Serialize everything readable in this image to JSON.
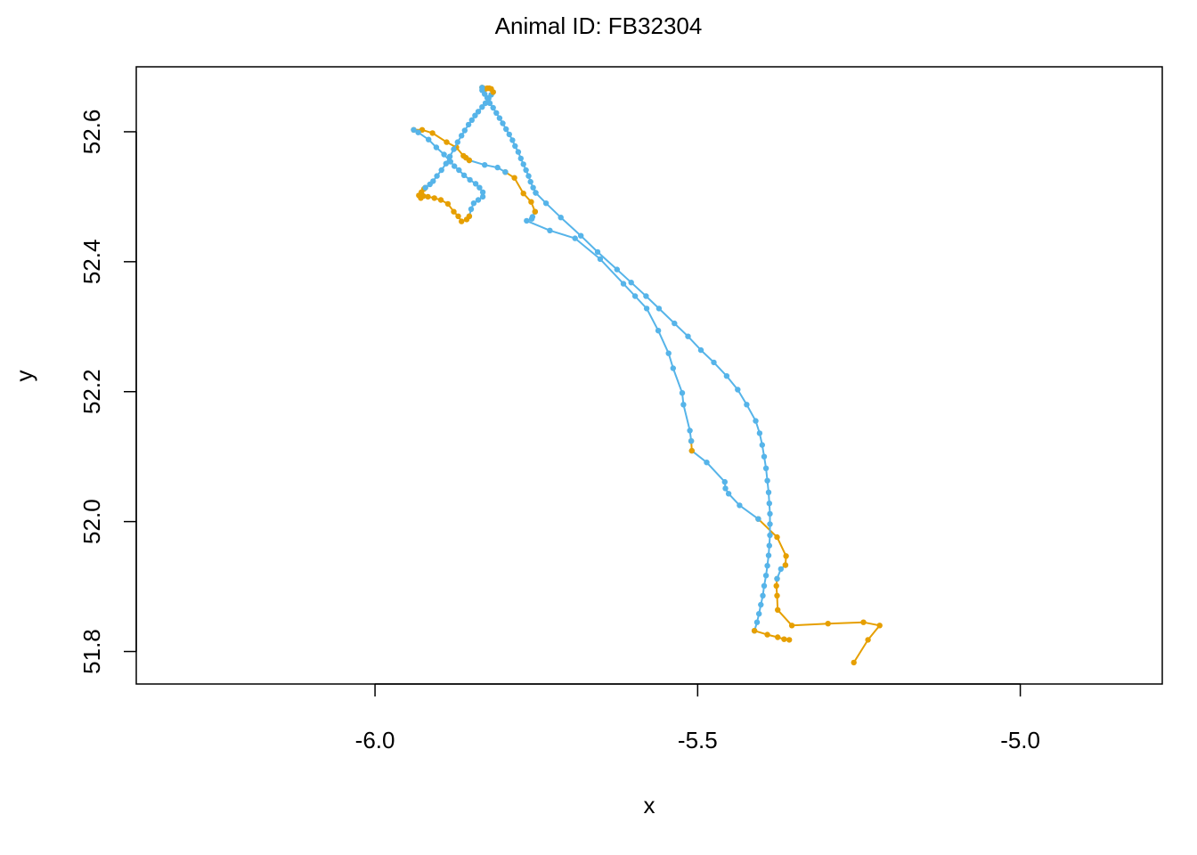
{
  "chart_data": {
    "type": "line",
    "title": "Animal ID: FB32304",
    "xlabel": "x",
    "ylabel": "y",
    "xlim": [
      -6.37,
      -4.78
    ],
    "ylim": [
      51.75,
      52.7
    ],
    "xticks": [
      -6.0,
      -5.5,
      -5.0
    ],
    "xtick_labels": [
      "-6.0",
      "-5.5",
      "-5.0"
    ],
    "yticks": [
      51.8,
      52.0,
      52.2,
      52.4,
      52.6
    ],
    "ytick_labels": [
      "51.8",
      "52.0",
      "52.2",
      "52.4",
      "52.6"
    ],
    "grid": false,
    "colors": {
      "state_a": "#56B4E9",
      "state_b": "#E69F00"
    },
    "segments": [
      {
        "state": "b",
        "points": [
          [
            -5.258,
            51.783
          ],
          [
            -5.236,
            51.818
          ],
          [
            -5.218,
            51.84
          ],
          [
            -5.243,
            51.845
          ],
          [
            -5.298,
            51.843
          ],
          [
            -5.354,
            51.84
          ],
          [
            -5.376,
            51.864
          ],
          [
            -5.377,
            51.886
          ],
          [
            -5.378,
            51.901
          ],
          [
            -5.377,
            51.912
          ]
        ]
      },
      {
        "state": "a",
        "points": [
          [
            -5.377,
            51.912
          ],
          [
            -5.371,
            51.927
          ],
          [
            -5.364,
            51.933
          ]
        ]
      },
      {
        "state": "b",
        "points": [
          [
            -5.364,
            51.933
          ],
          [
            -5.363,
            51.947
          ],
          [
            -5.377,
            51.976
          ],
          [
            -5.406,
            52.004
          ]
        ]
      },
      {
        "state": "a",
        "points": [
          [
            -5.406,
            52.004
          ],
          [
            -5.435,
            52.025
          ],
          [
            -5.452,
            52.043
          ],
          [
            -5.457,
            52.051
          ],
          [
            -5.458,
            52.061
          ],
          [
            -5.486,
            52.091
          ],
          [
            -5.509,
            52.109
          ]
        ]
      },
      {
        "state": "b",
        "points": [
          [
            -5.509,
            52.109
          ],
          [
            -5.51,
            52.124
          ]
        ]
      },
      {
        "state": "a",
        "points": [
          [
            -5.51,
            52.124
          ],
          [
            -5.512,
            52.14
          ],
          [
            -5.522,
            52.18
          ],
          [
            -5.524,
            52.198
          ],
          [
            -5.538,
            52.236
          ],
          [
            -5.545,
            52.259
          ],
          [
            -5.561,
            52.294
          ],
          [
            -5.579,
            52.328
          ],
          [
            -5.597,
            52.347
          ],
          [
            -5.615,
            52.366
          ],
          [
            -5.651,
            52.404
          ],
          [
            -5.69,
            52.436
          ],
          [
            -5.729,
            52.448
          ],
          [
            -5.765,
            52.463
          ],
          [
            -5.757,
            52.466
          ],
          [
            -5.756,
            52.469
          ],
          [
            -5.752,
            52.477
          ]
        ]
      },
      {
        "state": "b",
        "points": [
          [
            -5.752,
            52.477
          ],
          [
            -5.758,
            52.492
          ],
          [
            -5.77,
            52.505
          ],
          [
            -5.784,
            52.529
          ],
          [
            -5.798,
            52.538
          ]
        ]
      },
      {
        "state": "a",
        "points": [
          [
            -5.798,
            52.538
          ],
          [
            -5.81,
            52.545
          ],
          [
            -5.83,
            52.549
          ],
          [
            -5.854,
            52.556
          ]
        ]
      },
      {
        "state": "b",
        "points": [
          [
            -5.854,
            52.556
          ],
          [
            -5.859,
            52.56
          ],
          [
            -5.863,
            52.563
          ],
          [
            -5.874,
            52.576
          ],
          [
            -5.889,
            52.584
          ],
          [
            -5.911,
            52.598
          ],
          [
            -5.927,
            52.603
          ],
          [
            -5.94,
            52.603
          ]
        ]
      },
      {
        "state": "a",
        "points": [
          [
            -5.94,
            52.603
          ],
          [
            -5.933,
            52.599
          ],
          [
            -5.917,
            52.588
          ],
          [
            -5.905,
            52.576
          ],
          [
            -5.893,
            52.565
          ],
          [
            -5.883,
            52.554
          ],
          [
            -5.877,
            52.547
          ],
          [
            -5.87,
            52.541
          ],
          [
            -5.862,
            52.533
          ],
          [
            -5.853,
            52.526
          ],
          [
            -5.844,
            52.52
          ],
          [
            -5.838,
            52.514
          ],
          [
            -5.833,
            52.507
          ],
          [
            -5.833,
            52.5
          ],
          [
            -5.84,
            52.495
          ],
          [
            -5.847,
            52.49
          ],
          [
            -5.851,
            52.481
          ],
          [
            -5.854,
            52.47
          ]
        ]
      },
      {
        "state": "b",
        "points": [
          [
            -5.854,
            52.47
          ],
          [
            -5.858,
            52.465
          ],
          [
            -5.866,
            52.462
          ],
          [
            -5.871,
            52.47
          ],
          [
            -5.878,
            52.477
          ],
          [
            -5.887,
            52.489
          ],
          [
            -5.898,
            52.495
          ],
          [
            -5.908,
            52.498
          ],
          [
            -5.918,
            52.5
          ],
          [
            -5.925,
            52.501
          ],
          [
            -5.929,
            52.498
          ],
          [
            -5.932,
            52.502
          ],
          [
            -5.928,
            52.507
          ],
          [
            -5.924,
            52.512
          ],
          [
            -5.922,
            52.514
          ]
        ]
      },
      {
        "state": "a",
        "points": [
          [
            -5.922,
            52.514
          ],
          [
            -5.915,
            52.519
          ],
          [
            -5.91,
            52.524
          ],
          [
            -5.904,
            52.532
          ],
          [
            -5.897,
            52.541
          ],
          [
            -5.89,
            52.551
          ],
          [
            -5.884,
            52.562
          ],
          [
            -5.878,
            52.573
          ],
          [
            -5.872,
            52.584
          ],
          [
            -5.866,
            52.594
          ],
          [
            -5.861,
            52.602
          ],
          [
            -5.855,
            52.611
          ],
          [
            -5.85,
            52.618
          ],
          [
            -5.845,
            52.625
          ],
          [
            -5.84,
            52.631
          ],
          [
            -5.834,
            52.638
          ],
          [
            -5.829,
            52.644
          ],
          [
            -5.824,
            52.651
          ],
          [
            -5.82,
            52.657
          ],
          [
            -5.817,
            52.661
          ]
        ]
      },
      {
        "state": "b",
        "points": [
          [
            -5.817,
            52.661
          ],
          [
            -5.82,
            52.666
          ],
          [
            -5.823,
            52.667
          ],
          [
            -5.826,
            52.667
          ],
          [
            -5.829,
            52.666
          ],
          [
            -5.832,
            52.667
          ],
          [
            -5.834,
            52.668
          ]
        ]
      },
      {
        "state": "a",
        "points": [
          [
            -5.834,
            52.668
          ],
          [
            -5.834,
            52.664
          ],
          [
            -5.83,
            52.658
          ],
          [
            -5.826,
            52.652
          ],
          [
            -5.822,
            52.644
          ],
          [
            -5.817,
            52.637
          ],
          [
            -5.812,
            52.629
          ],
          [
            -5.807,
            52.621
          ],
          [
            -5.802,
            52.613
          ],
          [
            -5.797,
            52.604
          ],
          [
            -5.792,
            52.596
          ],
          [
            -5.787,
            52.587
          ],
          [
            -5.783,
            52.578
          ],
          [
            -5.778,
            52.569
          ],
          [
            -5.774,
            52.559
          ],
          [
            -5.77,
            52.55
          ],
          [
            -5.766,
            52.541
          ],
          [
            -5.762,
            52.532
          ],
          [
            -5.759,
            52.523
          ],
          [
            -5.755,
            52.514
          ],
          [
            -5.751,
            52.506
          ]
        ]
      },
      {
        "state": "a",
        "points": [
          [
            -5.751,
            52.506
          ],
          [
            -5.735,
            52.49
          ],
          [
            -5.712,
            52.468
          ],
          [
            -5.681,
            52.44
          ],
          [
            -5.655,
            52.415
          ],
          [
            -5.625,
            52.388
          ],
          [
            -5.603,
            52.368
          ],
          [
            -5.58,
            52.347
          ],
          [
            -5.56,
            52.328
          ],
          [
            -5.536,
            52.305
          ],
          [
            -5.515,
            52.285
          ],
          [
            -5.495,
            52.264
          ],
          [
            -5.475,
            52.245
          ],
          [
            -5.455,
            52.224
          ],
          [
            -5.438,
            52.203
          ],
          [
            -5.424,
            52.18
          ],
          [
            -5.41,
            52.155
          ],
          [
            -5.404,
            52.136
          ],
          [
            -5.4,
            52.118
          ],
          [
            -5.397,
            52.1
          ],
          [
            -5.394,
            52.082
          ],
          [
            -5.392,
            52.063
          ],
          [
            -5.39,
            52.045
          ],
          [
            -5.389,
            52.028
          ],
          [
            -5.388,
            52.012
          ],
          [
            -5.388,
            51.996
          ],
          [
            -5.388,
            51.979
          ],
          [
            -5.389,
            51.963
          ],
          [
            -5.39,
            51.948
          ],
          [
            -5.392,
            51.932
          ],
          [
            -5.394,
            51.917
          ],
          [
            -5.397,
            51.901
          ],
          [
            -5.399,
            51.886
          ],
          [
            -5.402,
            51.872
          ],
          [
            -5.405,
            51.858
          ],
          [
            -5.408,
            51.845
          ],
          [
            -5.412,
            51.832
          ]
        ]
      },
      {
        "state": "b",
        "points": [
          [
            -5.412,
            51.832
          ],
          [
            -5.392,
            51.826
          ],
          [
            -5.376,
            51.822
          ],
          [
            -5.366,
            51.819
          ],
          [
            -5.358,
            51.818
          ]
        ]
      }
    ]
  }
}
